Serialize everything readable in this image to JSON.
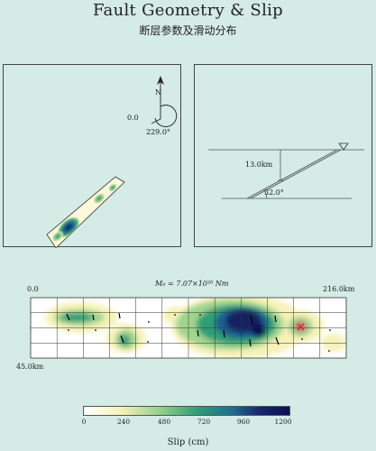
{
  "header": {
    "title": "Fault Geometry & Slip",
    "subtitle": "断层参数及滑动分布"
  },
  "map_panel": {
    "north_label": "N",
    "strike_value": "0.0",
    "strike_angle_label": "229.0°"
  },
  "section_panel": {
    "depth_label": "13.0km",
    "dip_label": "32.0°"
  },
  "slip_panel": {
    "moment_label": "M₀ = 7.07×10²⁰ Nm",
    "left_top_label": "0.0",
    "right_top_label": "216.0km",
    "left_bottom_label": "45.0km"
  },
  "colorbar": {
    "ticks": [
      "0",
      "240",
      "480",
      "720",
      "960",
      "1200"
    ],
    "title": "Slip (cm)",
    "colors": [
      "#ffffff",
      "#f6f2b8",
      "#8fce8a",
      "#2e9e74",
      "#1f6f91",
      "#16256e",
      "#0b0f52"
    ]
  },
  "colors": {
    "background": "#d4ebe6",
    "hypocenter": "#e52222"
  }
}
